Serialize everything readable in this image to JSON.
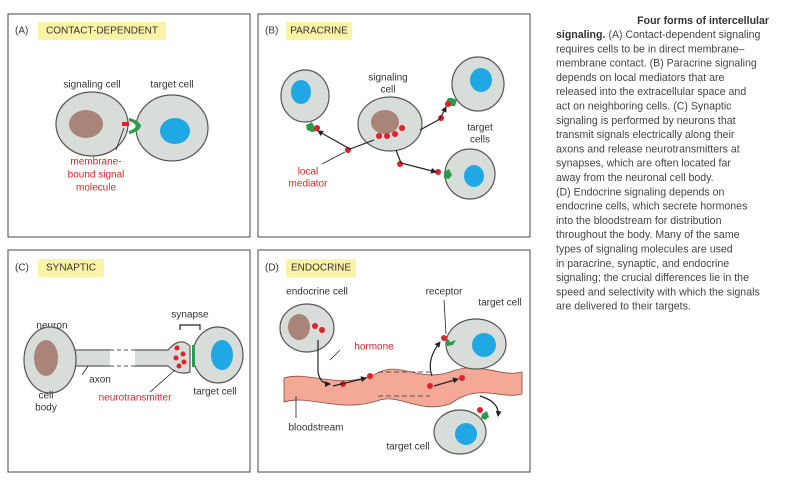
{
  "panels": [
    {
      "letter": "(A)",
      "title": "CONTACT-DEPENDENT",
      "labels": [
        "signaling cell",
        "target cell",
        "membrane-",
        "bound signal",
        "molecule"
      ]
    },
    {
      "letter": "(B)",
      "title": "PARACRINE",
      "labels": [
        "signaling",
        "cell",
        "target",
        "cells",
        "local",
        "mediator"
      ]
    },
    {
      "letter": "(C)",
      "title": "SYNAPTIC",
      "labels": [
        "neuron",
        "synapse",
        "axon",
        "cell",
        "body",
        "neurotransmitter",
        "target cell"
      ]
    },
    {
      "letter": "(D)",
      "title": "ENDOCRINE",
      "labels": [
        "endocrine cell",
        "receptor",
        "target cell",
        "hormone",
        "bloodstream",
        "target cell"
      ]
    }
  ],
  "caption": {
    "title_lines": [
      "Four forms of intercellular",
      "signaling."
    ],
    "lines": [
      "(A) Contact-dependent signaling",
      "requires cells to be in direct membrane–",
      "membrane contact. (B) Paracrine signaling",
      "depends on local mediators that are",
      "released into the extracellular space and",
      "act on neighboring cells. (C) Synaptic",
      "signaling is performed by neurons that",
      "transmit signals electrically along their",
      "axons and release neurotransmitters at",
      "synapses, which are often located far",
      "away from the neuronal cell body.",
      "(D) Endocrine signaling depends on",
      "endocrine cells, which secrete hormones",
      "into the bloodstream for distribution",
      "throughout the body. Many of the same",
      "types of signaling molecules are used",
      "in paracrine, synaptic, and endocrine",
      "signaling; the crucial differences lie in the",
      "speed and selectivity with which the signals",
      "are delivered to their targets."
    ]
  }
}
